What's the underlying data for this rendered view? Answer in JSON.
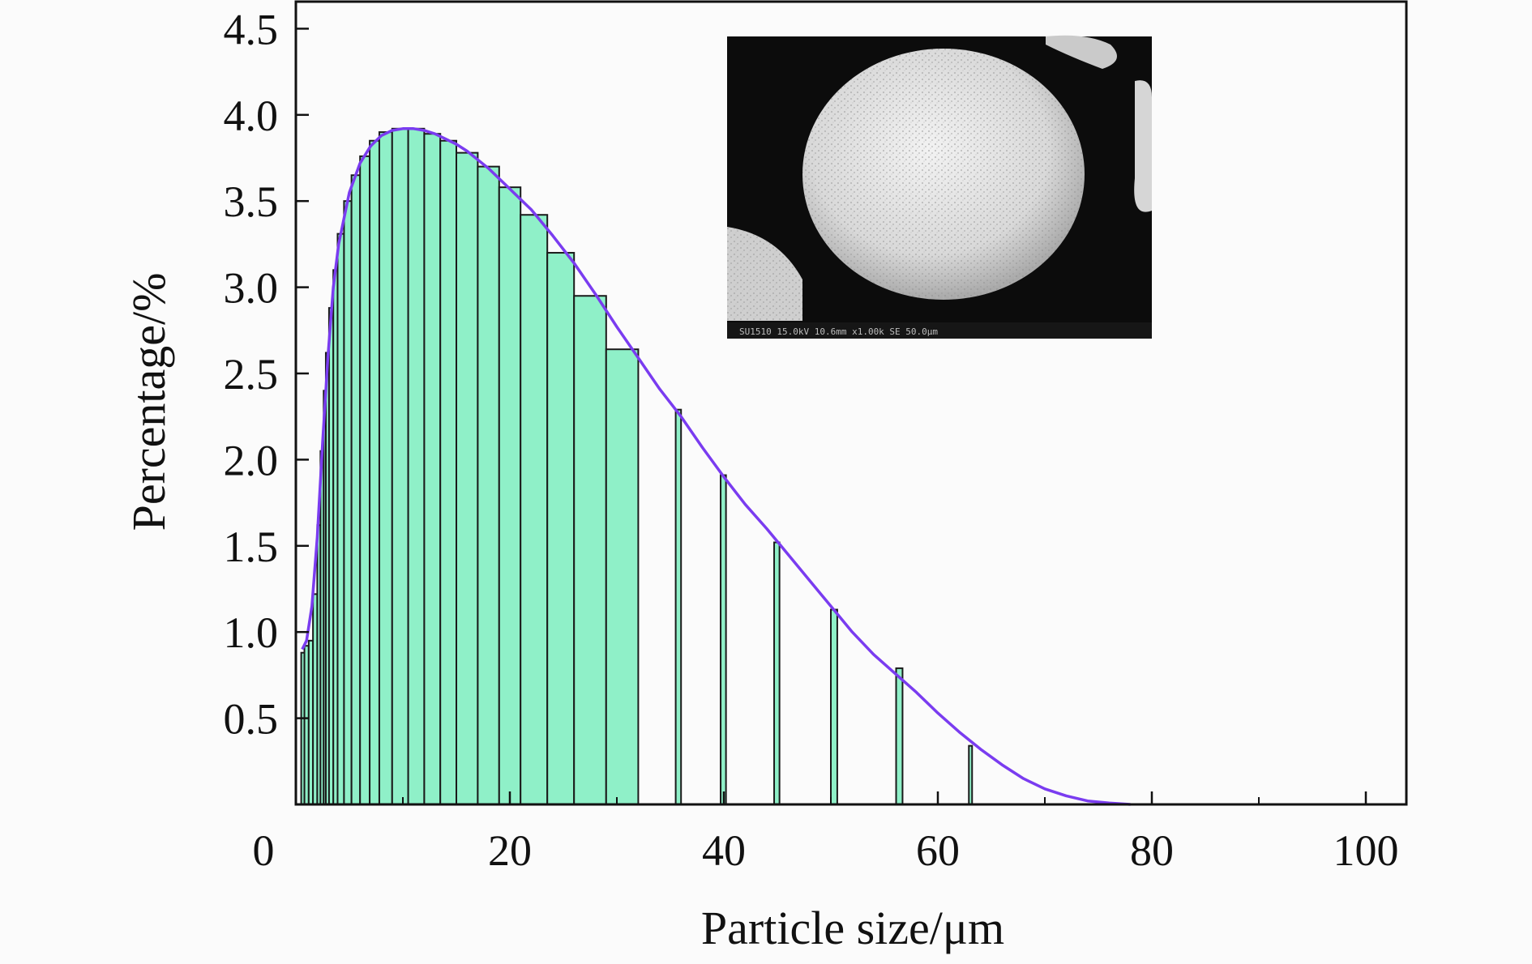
{
  "chart_data": {
    "type": "bar",
    "xlabel": "Particle size/μm",
    "ylabel": "Percentage/%",
    "xlim": [
      0,
      104
    ],
    "ylim": [
      0,
      4.65
    ],
    "x_ticks": [
      0,
      20,
      40,
      60,
      80,
      100
    ],
    "x_tick_labels": [
      "0",
      "20",
      "40",
      "60",
      "80",
      "100"
    ],
    "y_ticks": [
      0.5,
      1.0,
      1.5,
      2.0,
      2.5,
      3.0,
      3.5,
      4.0,
      4.5
    ],
    "y_tick_labels": [
      "0.5",
      "1.0",
      "1.5",
      "2.0",
      "2.5",
      "3.0",
      "3.5",
      "4.0",
      "4.5"
    ],
    "bar_color": "#8ff0c8",
    "curve_color": "#7a3cf0",
    "bars": [
      {
        "x0": 0.5,
        "x1": 0.8,
        "value": 0.88
      },
      {
        "x0": 0.8,
        "x1": 1.2,
        "value": 0.92
      },
      {
        "x0": 1.2,
        "x1": 1.6,
        "value": 0.95
      },
      {
        "x0": 1.6,
        "x1": 2.0,
        "value": 1.22
      },
      {
        "x0": 2.0,
        "x1": 2.3,
        "value": 1.62
      },
      {
        "x0": 2.3,
        "x1": 2.6,
        "value": 2.05
      },
      {
        "x0": 2.6,
        "x1": 2.8,
        "value": 2.4
      },
      {
        "x0": 2.8,
        "x1": 3.1,
        "value": 2.62
      },
      {
        "x0": 3.1,
        "x1": 3.5,
        "value": 2.88
      },
      {
        "x0": 3.5,
        "x1": 3.9,
        "value": 3.1
      },
      {
        "x0": 3.9,
        "x1": 4.5,
        "value": 3.31
      },
      {
        "x0": 4.5,
        "x1": 5.2,
        "value": 3.5
      },
      {
        "x0": 5.2,
        "x1": 6.0,
        "value": 3.65
      },
      {
        "x0": 6.0,
        "x1": 6.9,
        "value": 3.76
      },
      {
        "x0": 6.9,
        "x1": 7.8,
        "value": 3.85
      },
      {
        "x0": 7.8,
        "x1": 9.0,
        "value": 3.9
      },
      {
        "x0": 9.0,
        "x1": 10.5,
        "value": 3.92
      },
      {
        "x0": 10.5,
        "x1": 12.0,
        "value": 3.92
      },
      {
        "x0": 12.0,
        "x1": 13.5,
        "value": 3.89
      },
      {
        "x0": 13.5,
        "x1": 15.0,
        "value": 3.85
      },
      {
        "x0": 15.0,
        "x1": 17.0,
        "value": 3.78
      },
      {
        "x0": 17.0,
        "x1": 19.0,
        "value": 3.7
      },
      {
        "x0": 19.0,
        "x1": 21.0,
        "value": 3.58
      },
      {
        "x0": 21.0,
        "x1": 23.5,
        "value": 3.42
      },
      {
        "x0": 23.5,
        "x1": 26.0,
        "value": 3.2
      },
      {
        "x0": 26.0,
        "x1": 29.0,
        "value": 2.95
      },
      {
        "x0": 29.0,
        "x1": 32.0,
        "value": 2.64
      },
      {
        "x0": 32.0,
        "x1": 35.5,
        "value": 0.0
      },
      {
        "x0": 35.5,
        "x1": 36.0,
        "value": 2.29
      },
      {
        "x0": 39.7,
        "x1": 40.2,
        "value": 1.91
      },
      {
        "x0": 44.7,
        "x1": 45.2,
        "value": 1.52
      },
      {
        "x0": 50.0,
        "x1": 50.6,
        "value": 1.13
      },
      {
        "x0": 56.1,
        "x1": 56.7,
        "value": 0.79
      },
      {
        "x0": 62.9,
        "x1": 63.2,
        "value": 0.34
      }
    ],
    "fit_curve": {
      "x": [
        0.6,
        1.0,
        1.5,
        2.0,
        2.5,
        3.0,
        3.5,
        4.0,
        5.0,
        6.0,
        7.0,
        8.0,
        9.0,
        10.0,
        11.0,
        12.0,
        13.0,
        14.0,
        15.0,
        16.0,
        18.0,
        20.0,
        22.0,
        24.0,
        26.0,
        28.0,
        30.0,
        32.0,
        34.0,
        36.0,
        38.0,
        40.0,
        42.0,
        44.0,
        46.0,
        48.0,
        50.0,
        52.0,
        54.0,
        56.0,
        58.0,
        60.0,
        62.0,
        64.0,
        66.0,
        68.0,
        70.0,
        72.0,
        74.0,
        76.0,
        78.0
      ],
      "y": [
        0.9,
        0.95,
        1.15,
        1.55,
        2.1,
        2.6,
        3.0,
        3.25,
        3.55,
        3.72,
        3.82,
        3.88,
        3.91,
        3.92,
        3.92,
        3.91,
        3.89,
        3.86,
        3.83,
        3.79,
        3.69,
        3.57,
        3.45,
        3.3,
        3.14,
        2.96,
        2.77,
        2.59,
        2.41,
        2.25,
        2.07,
        1.9,
        1.74,
        1.6,
        1.45,
        1.3,
        1.15,
        1.0,
        0.87,
        0.76,
        0.65,
        0.53,
        0.42,
        0.32,
        0.23,
        0.15,
        0.09,
        0.05,
        0.02,
        0.008,
        0.0
      ]
    }
  },
  "inset": {
    "scale_bar_text": "SU1510  15.0kV  10.6mm  x1.00k SE  50.0μm"
  }
}
